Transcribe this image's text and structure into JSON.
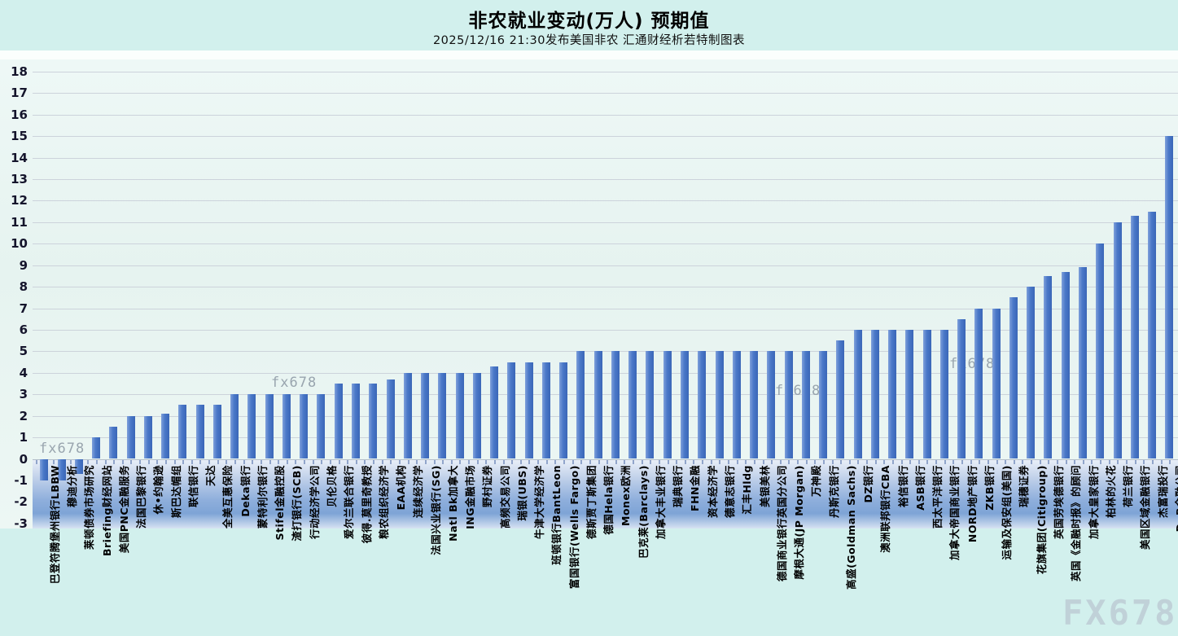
{
  "header": {
    "title": "非农就业变动(万人)  预期值",
    "subtitle": "2025/12/16 21:30发布美国非农  汇通财经析若特制图表"
  },
  "watermark": {
    "small": "fx678",
    "large": "FX678"
  },
  "chart_data": {
    "type": "bar",
    "title": "非农就业变动(万人)  预期值",
    "subtitle": "2025/12/16 21:30发布美国非农  汇通财经析若特制图表",
    "xlabel": "",
    "ylabel": "",
    "ylim": [
      -3,
      18
    ],
    "ytick_step": 1,
    "grid": true,
    "legend": "none",
    "bar_color": "#4a78c8",
    "categories": [
      "巴登符腾堡州银行LBBW",
      "穆迪分析",
      "莱顿债券市场研究",
      "Briefing财经网站",
      "美国PNC金融服务",
      "法国巴黎银行",
      "休•约翰逊",
      "斯巴达帽组",
      "联信银行",
      "天达",
      "全美互惠保险",
      "Deka银行",
      "蒙特利尔银行",
      "Stifel金融控股",
      "渣打银行(SCB)",
      "行动经济学公司",
      "贝伦贝格",
      "爱尔兰联合银行",
      "彼得.莫里奇教授",
      "粮农组织经济学",
      "EAA机构",
      "连续经济学",
      "法国兴业银行(SG)",
      "Natl Bk加拿大",
      "ING金融市场",
      "野村证券",
      "高频交易公司",
      "瑞银(UBS)",
      "牛津大学经济学",
      "班顿银行BantLeon",
      "富国银行(Wells Fargo)",
      "德斯贾丁斯集团",
      "德国Hela银行",
      "Monex欧洲",
      "巴克莱(Barclays)",
      "加拿大丰业银行",
      "瑞典银行",
      "FHN金融",
      "资本经济学",
      "德意志银行",
      "汇丰Hldg",
      "美银美林",
      "德国商业银行英国分公司",
      "摩根大通(JP Morgan)",
      "万神殿",
      "丹斯克银行",
      "高盛(Goldman Sachs)",
      "DZ银行",
      "澳洲联邦银行CBA",
      "裕信银行",
      "ASB银行",
      "西太平洋银行",
      "加拿大帝国商业银行",
      "NORD地产银行",
      "ZKB银行",
      "运输及保安组(美国)",
      "瑞穗证券",
      "花旗集团(Citigroup)",
      "英国劳埃德银行",
      "英国《金融时报》的顾问",
      "加拿大皇家银行",
      "柏林的火花",
      "荷兰银行",
      "美国区域金融银行",
      "杰富瑞投行",
      "DnB金融公司"
    ],
    "values": [
      -1.0,
      -1.0,
      -0.7,
      1.0,
      1.5,
      2.0,
      2.0,
      2.1,
      2.5,
      2.5,
      2.5,
      3.0,
      3.0,
      3.0,
      3.0,
      3.0,
      3.0,
      3.5,
      3.5,
      3.5,
      3.7,
      4.0,
      4.0,
      4.0,
      4.0,
      4.0,
      4.3,
      4.5,
      4.5,
      4.5,
      4.5,
      5.0,
      5.0,
      5.0,
      5.0,
      5.0,
      5.0,
      5.0,
      5.0,
      5.0,
      5.0,
      5.0,
      5.0,
      5.0,
      5.0,
      5.0,
      5.5,
      6.0,
      6.0,
      6.0,
      6.0,
      6.0,
      6.0,
      6.5,
      7.0,
      7.0,
      7.5,
      8.0,
      8.5,
      8.7,
      8.9,
      10.0,
      11.0,
      11.3,
      11.5,
      15.0
    ]
  }
}
